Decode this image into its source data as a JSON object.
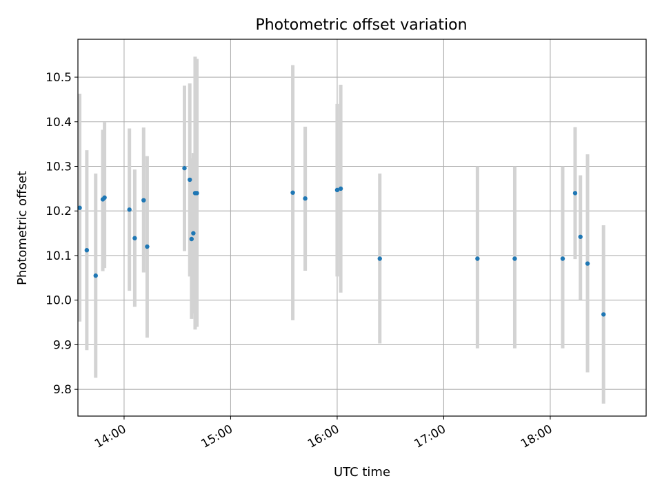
{
  "chart_data": {
    "type": "scatter",
    "title": "Photometric offset variation",
    "xlabel": "UTC time",
    "ylabel": "Photometric offset",
    "x_tick_labels": [
      "14:00",
      "15:00",
      "16:00",
      "17:00",
      "18:00"
    ],
    "y_tick_labels": [
      "9.8",
      "9.9",
      "10.0",
      "10.1",
      "10.2",
      "10.3",
      "10.4",
      "10.5"
    ],
    "xlim": [
      "13:34",
      "18:54"
    ],
    "ylim": [
      9.74,
      10.585
    ],
    "grid": true,
    "colors": {
      "marker": "#1f77b4",
      "errorbar": "#d3d3d3",
      "grid": "#b0b0b0"
    },
    "points": [
      {
        "x": "13:35",
        "y": 10.207,
        "low": 9.952,
        "high": 10.463
      },
      {
        "x": "13:39",
        "y": 10.112,
        "low": 9.888,
        "high": 10.336
      },
      {
        "x": "13:44",
        "y": 10.055,
        "low": 9.826,
        "high": 10.284
      },
      {
        "x": "13:48",
        "y": 10.226,
        "low": 10.065,
        "high": 10.382
      },
      {
        "x": "13:49",
        "y": 10.23,
        "low": 10.072,
        "high": 10.399
      },
      {
        "x": "14:03",
        "y": 10.203,
        "low": 10.021,
        "high": 10.385
      },
      {
        "x": "14:06",
        "y": 10.139,
        "low": 9.985,
        "high": 10.293
      },
      {
        "x": "14:11",
        "y": 10.224,
        "low": 10.062,
        "high": 10.387
      },
      {
        "x": "14:13",
        "y": 10.12,
        "low": 9.916,
        "high": 10.323
      },
      {
        "x": "14:34",
        "y": 10.296,
        "low": 10.11,
        "high": 10.481
      },
      {
        "x": "14:37",
        "y": 10.27,
        "low": 10.053,
        "high": 10.486
      },
      {
        "x": "14:38",
        "y": 10.137,
        "low": 9.958,
        "high": 10.318
      },
      {
        "x": "14:39",
        "y": 10.15,
        "low": 9.97,
        "high": 10.33
      },
      {
        "x": "14:40",
        "y": 10.24,
        "low": 9.934,
        "high": 10.546
      },
      {
        "x": "14:41",
        "y": 10.24,
        "low": 9.94,
        "high": 10.541
      },
      {
        "x": "15:35",
        "y": 10.241,
        "low": 9.955,
        "high": 10.527
      },
      {
        "x": "15:42",
        "y": 10.228,
        "low": 10.066,
        "high": 10.389
      },
      {
        "x": "16:00",
        "y": 10.247,
        "low": 10.053,
        "high": 10.44
      },
      {
        "x": "16:02",
        "y": 10.25,
        "low": 10.017,
        "high": 10.483
      },
      {
        "x": "16:24",
        "y": 10.093,
        "low": 9.903,
        "high": 10.284
      },
      {
        "x": "17:19",
        "y": 10.093,
        "low": 9.892,
        "high": 10.3
      },
      {
        "x": "17:40",
        "y": 10.093,
        "low": 9.892,
        "high": 10.3
      },
      {
        "x": "18:07",
        "y": 10.093,
        "low": 9.892,
        "high": 10.3
      },
      {
        "x": "18:14",
        "y": 10.24,
        "low": 10.092,
        "high": 10.388
      },
      {
        "x": "18:17",
        "y": 10.142,
        "low": 10.001,
        "high": 10.28
      },
      {
        "x": "18:21",
        "y": 10.082,
        "low": 9.838,
        "high": 10.327
      },
      {
        "x": "18:30",
        "y": 9.968,
        "low": 9.768,
        "high": 10.168
      }
    ]
  }
}
